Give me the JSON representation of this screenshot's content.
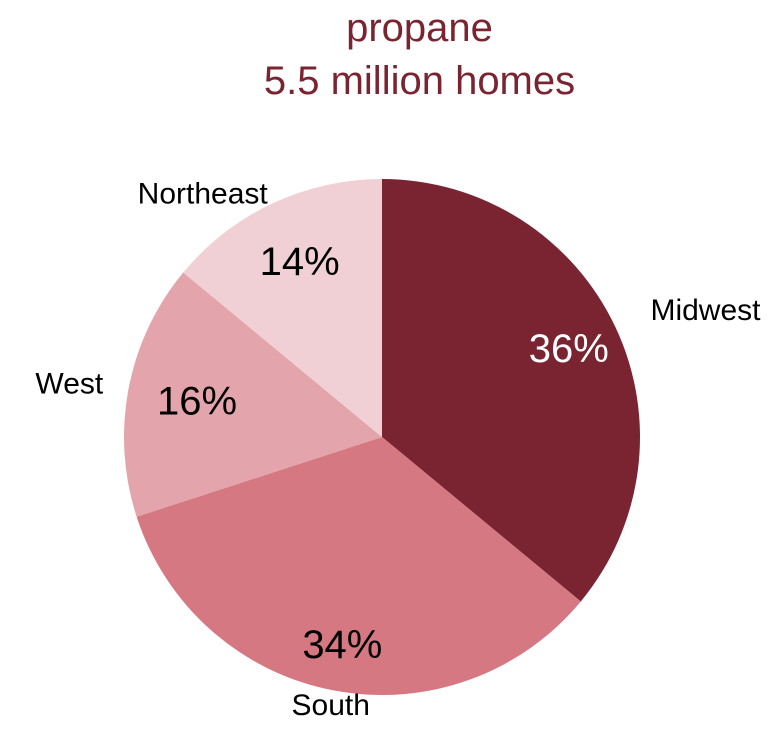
{
  "chart_data": {
    "type": "pie",
    "title_lines": [
      "propane",
      "5.5 million homes"
    ],
    "title_color": "#7b2431",
    "slices": [
      {
        "label": "Midwest",
        "value": 36,
        "value_label": "36%",
        "color": "#7b2431",
        "value_label_color": "#ffffff"
      },
      {
        "label": "South",
        "value": 34,
        "value_label": "34%",
        "color": "#d57882",
        "value_label_color": "#000000"
      },
      {
        "label": "West",
        "value": 16,
        "value_label": "16%",
        "color": "#e3a5ab",
        "value_label_color": "#000000"
      },
      {
        "label": "Northeast",
        "value": 14,
        "value_label": "14%",
        "color": "#f0d0d4",
        "value_label_color": "#000000"
      }
    ],
    "start_angle_deg": 0,
    "direction": "clockwise",
    "legend": "none"
  }
}
